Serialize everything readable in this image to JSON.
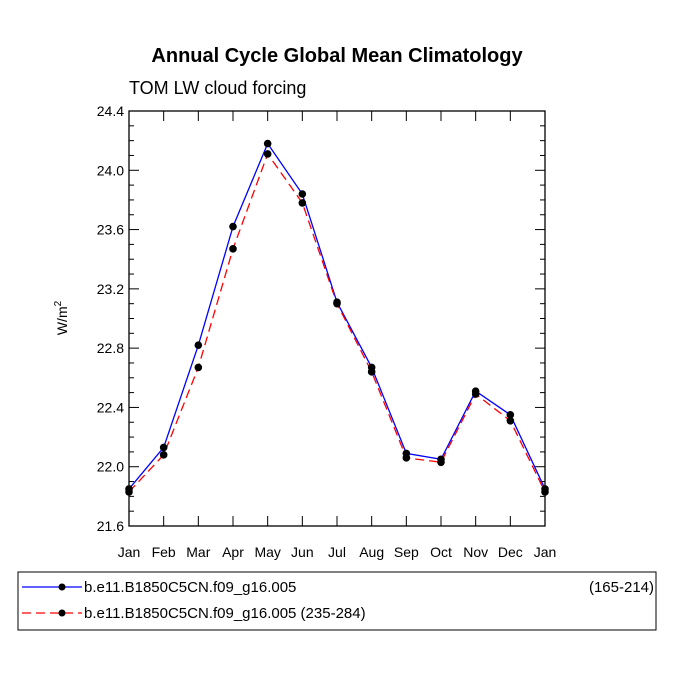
{
  "chart_data": {
    "type": "line",
    "title": "Annual Cycle Global Mean Climatology",
    "subtitle": "TOM LW cloud forcing",
    "xlabel": "",
    "ylabel": "W/m",
    "ylabel_superscript": "2",
    "categories": [
      "Jan",
      "Feb",
      "Mar",
      "Apr",
      "May",
      "Jun",
      "Jul",
      "Aug",
      "Sep",
      "Oct",
      "Nov",
      "Dec",
      "Jan"
    ],
    "ylim": [
      21.6,
      24.4
    ],
    "yticks": [
      "21.6",
      "22.0",
      "22.4",
      "22.8",
      "23.2",
      "23.6",
      "24.0",
      "24.4"
    ],
    "series": [
      {
        "name": "b.e11.B1850C5CN.f09_g16.005",
        "period": "(165-214)",
        "color": "#0000ff",
        "dash": "solid",
        "values": [
          21.85,
          22.13,
          22.82,
          23.62,
          24.18,
          23.84,
          23.11,
          22.67,
          22.09,
          22.05,
          22.51,
          22.35,
          21.85
        ]
      },
      {
        "name": "b.e11.B1850C5CN.f09_g16.005 (235-284)",
        "color": "#ff0000",
        "dash": "dashed",
        "values": [
          21.83,
          22.08,
          22.67,
          23.47,
          24.11,
          23.78,
          23.1,
          22.64,
          22.06,
          22.03,
          22.49,
          22.31,
          21.83
        ]
      }
    ],
    "grid": false,
    "legend_position": "bottom"
  }
}
